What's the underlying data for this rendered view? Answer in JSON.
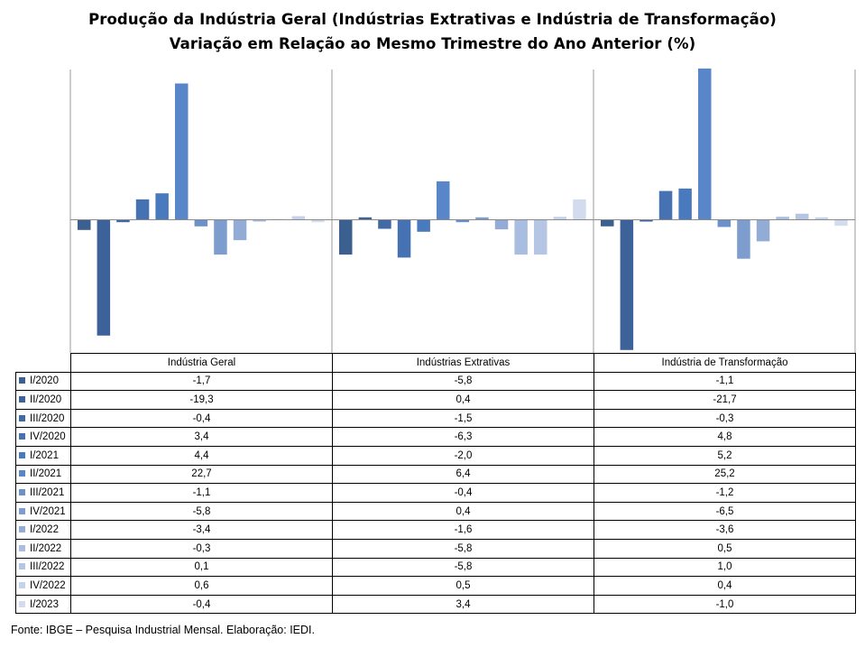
{
  "title": "Produção da Indústria Geral (Indústrias Extrativas e Indústria de Transformação)",
  "subtitle": "Variação em Relação ao Mesmo Trimestre do Ano Anterior (%)",
  "source": "Fonte: IBGE – Pesquisa Industrial Mensal. Elaboração: IEDI.",
  "chart_data": {
    "type": "bar",
    "categories": [
      "Indústria Geral",
      "Indústrias Extrativas",
      "Indústria de Transformação"
    ],
    "ylim": [
      -24,
      28
    ],
    "grid": false,
    "legend": "data table below chart",
    "series": [
      {
        "name": "I/2020",
        "color": "#3b5f8f",
        "values": [
          -1.7,
          -5.8,
          -1.1
        ],
        "labels": [
          "-1,7",
          "-5,8",
          "-1,1"
        ]
      },
      {
        "name": "II/2020",
        "color": "#3d6299",
        "values": [
          -19.3,
          0.4,
          -21.7
        ],
        "labels": [
          "-19,3",
          "0,4",
          "-21,7"
        ]
      },
      {
        "name": "III/2020",
        "color": "#4169a6",
        "values": [
          -0.4,
          -1.5,
          -0.3
        ],
        "labels": [
          "-0,4",
          "-1,5",
          "-0,3"
        ]
      },
      {
        "name": "IV/2020",
        "color": "#4672b3",
        "values": [
          3.4,
          -6.3,
          4.8
        ],
        "labels": [
          "3,4",
          "-6,3",
          "4,8"
        ]
      },
      {
        "name": "I/2021",
        "color": "#4a7abe",
        "values": [
          4.4,
          -2.0,
          5.2
        ],
        "labels": [
          "4,4",
          "-2,0",
          "5,2"
        ]
      },
      {
        "name": "II/2021",
        "color": "#5886c8",
        "values": [
          22.7,
          6.4,
          25.2
        ],
        "labels": [
          "22,7",
          "6,4",
          "25,2"
        ]
      },
      {
        "name": "III/2021",
        "color": "#6c90c8",
        "values": [
          -1.1,
          -0.4,
          -1.2
        ],
        "labels": [
          "-1,1",
          "-0,4",
          "-1,2"
        ]
      },
      {
        "name": "IV/2021",
        "color": "#7e9dcf",
        "values": [
          -5.8,
          0.4,
          -6.5
        ],
        "labels": [
          "-5,8",
          "0,4",
          "-6,5"
        ]
      },
      {
        "name": "I/2022",
        "color": "#92acd6",
        "values": [
          -3.4,
          -1.6,
          -3.6
        ],
        "labels": [
          "-3,4",
          "-1,6",
          "-3,6"
        ]
      },
      {
        "name": "II/2022",
        "color": "#a8bde0",
        "values": [
          -0.3,
          -5.8,
          0.5
        ],
        "labels": [
          "-0,3",
          "-5,8",
          "0,5"
        ]
      },
      {
        "name": "III/2022",
        "color": "#b4c6e4",
        "values": [
          0.1,
          -5.8,
          1.0
        ],
        "labels": [
          "0,1",
          "-5,8",
          "1,0"
        ]
      },
      {
        "name": "IV/2022",
        "color": "#c5d3ea",
        "values": [
          0.6,
          0.5,
          0.4
        ],
        "labels": [
          "0,6",
          "0,5",
          "0,4"
        ]
      },
      {
        "name": "I/2023",
        "color": "#d2dcee",
        "values": [
          -0.4,
          3.4,
          -1.0
        ],
        "labels": [
          "-0,4",
          "3,4",
          "-1,0"
        ]
      }
    ]
  }
}
